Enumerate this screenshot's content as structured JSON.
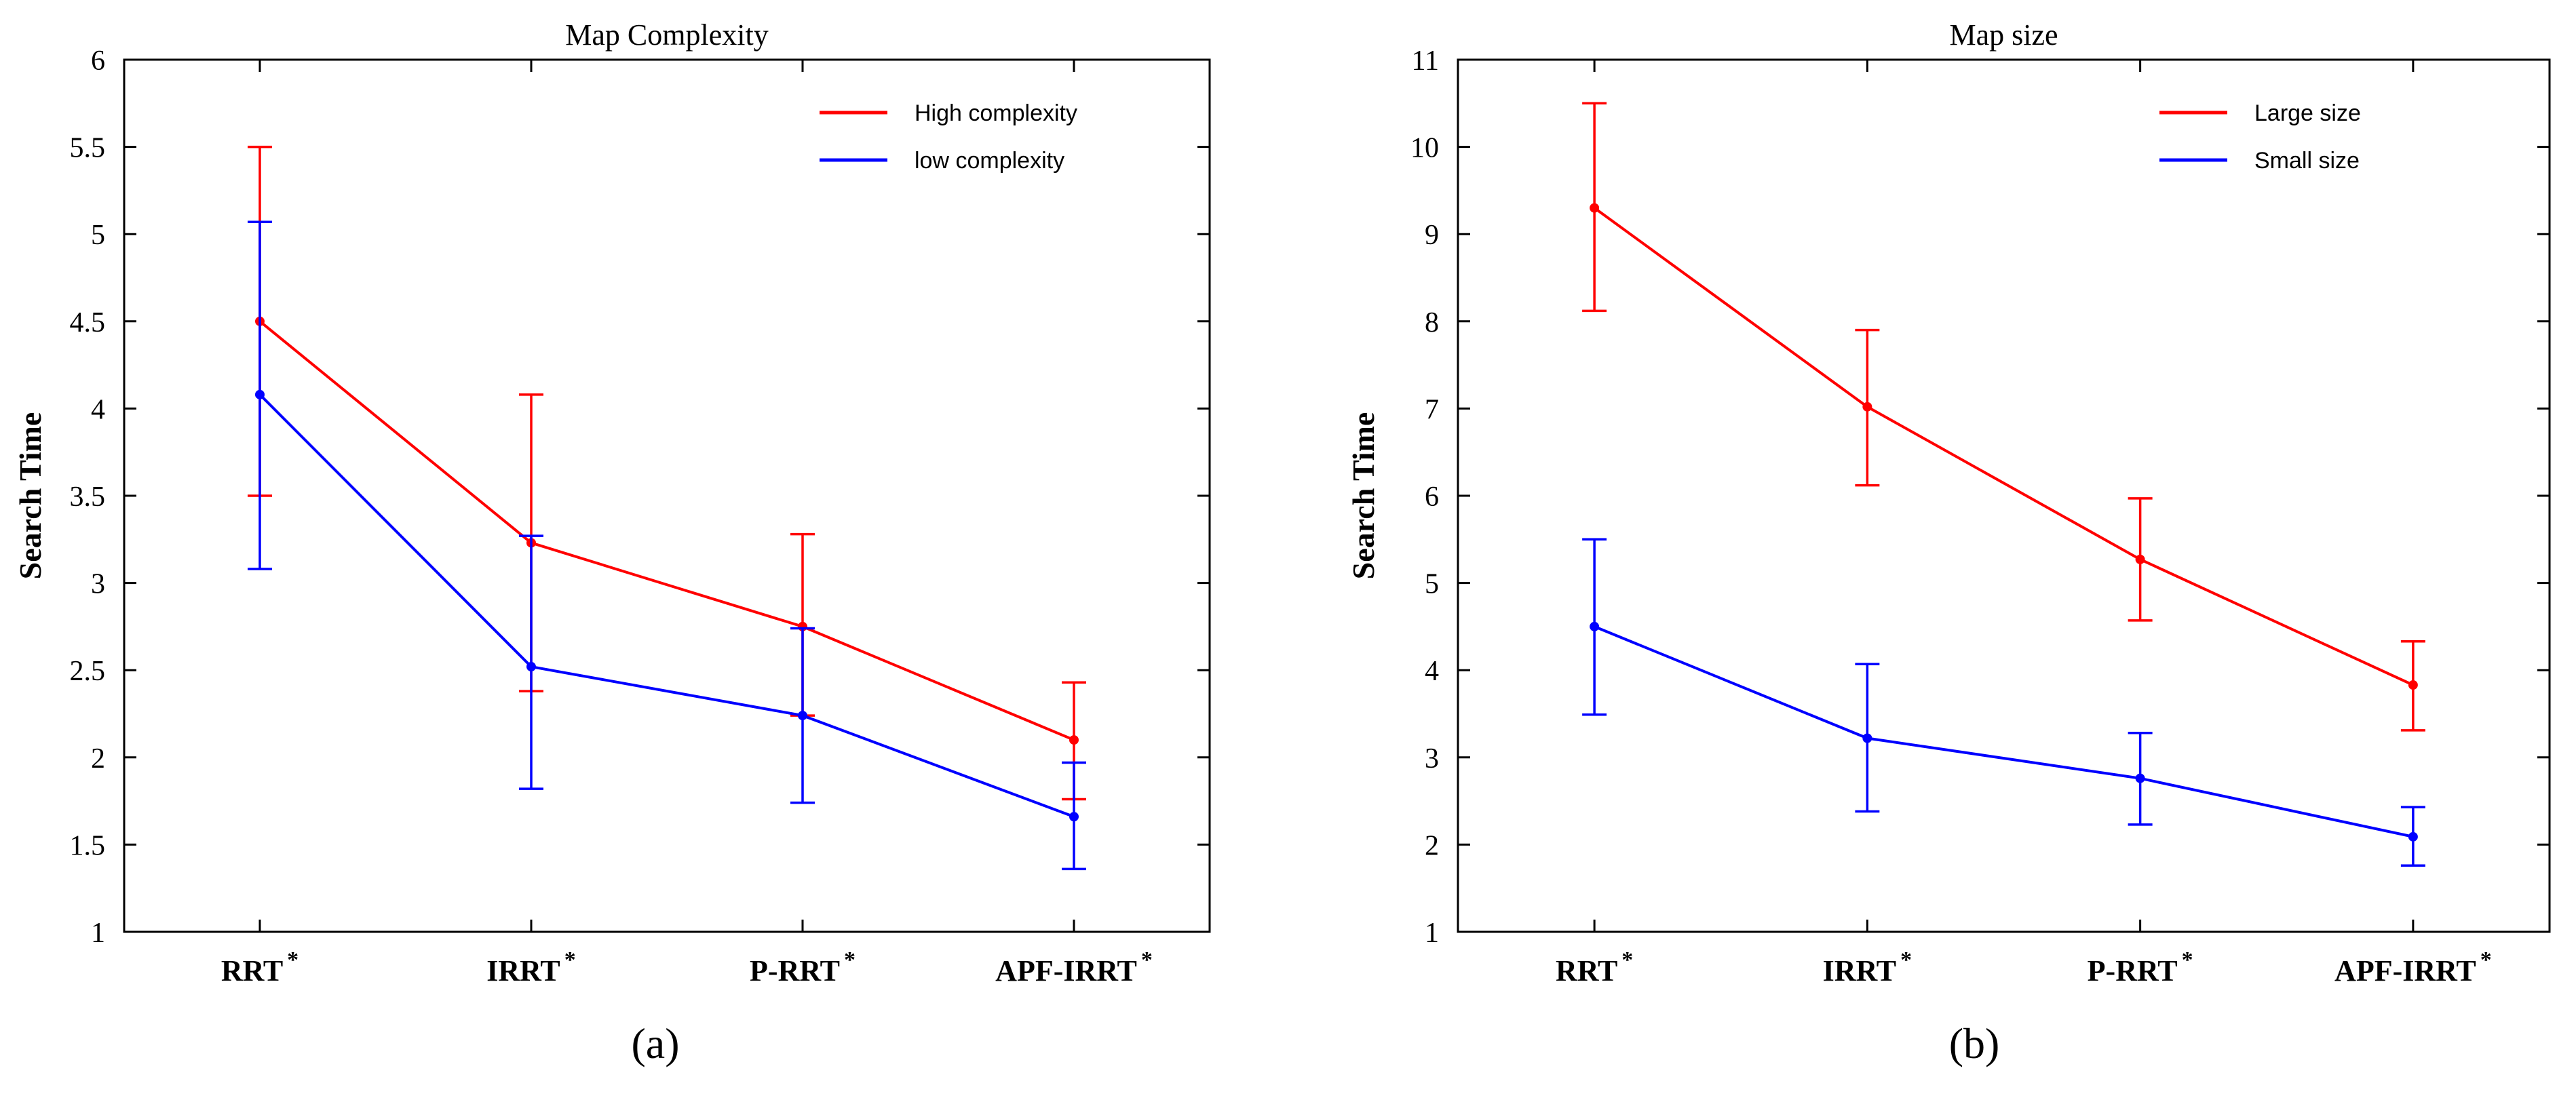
{
  "chart_data": [
    {
      "type": "line",
      "panel_label": "(a)",
      "title": "Map Complexity",
      "xlabel": "",
      "ylabel": "Search Time",
      "categories": [
        "RRT",
        "IRRT",
        "P-RRT",
        "APF-IRRT"
      ],
      "category_superscript": "*",
      "ylim": [
        1,
        6
      ],
      "yticks": [
        "1",
        "1.5",
        "2",
        "2.5",
        "3",
        "3.5",
        "4",
        "4.5",
        "5",
        "5.5",
        "6"
      ],
      "grid": false,
      "legend_position": "top-right",
      "series": [
        {
          "name": "High complexity",
          "color": "#ff0000",
          "values": [
            4.5,
            3.23,
            2.75,
            2.1
          ],
          "err_low": [
            3.5,
            2.38,
            2.24,
            1.76
          ],
          "err_high": [
            5.5,
            4.08,
            3.28,
            2.43
          ]
        },
        {
          "name": "low complexity",
          "color": "#0000ff",
          "values": [
            4.08,
            2.52,
            2.24,
            1.66
          ],
          "err_low": [
            3.08,
            1.82,
            1.74,
            1.36
          ],
          "err_high": [
            5.07,
            3.27,
            2.74,
            1.97
          ]
        }
      ]
    },
    {
      "type": "line",
      "panel_label": "(b)",
      "title": "Map size",
      "xlabel": "",
      "ylabel": "Search Time",
      "categories": [
        "RRT",
        "IRRT",
        "P-RRT",
        "APF-IRRT"
      ],
      "category_superscript": "*",
      "ylim": [
        1,
        11
      ],
      "yticks": [
        "1",
        "2",
        "3",
        "4",
        "5",
        "6",
        "7",
        "8",
        "9",
        "10",
        "11"
      ],
      "grid": false,
      "legend_position": "top-right",
      "series": [
        {
          "name": "Large size",
          "color": "#ff0000",
          "values": [
            9.3,
            7.02,
            5.27,
            3.83
          ],
          "err_low": [
            8.12,
            6.12,
            4.57,
            3.31
          ],
          "err_high": [
            10.5,
            7.9,
            5.97,
            4.33
          ]
        },
        {
          "name": "Small size",
          "color": "#0000ff",
          "values": [
            4.5,
            3.22,
            2.76,
            2.09
          ],
          "err_low": [
            3.49,
            2.38,
            2.23,
            1.76
          ],
          "err_high": [
            5.5,
            4.07,
            3.28,
            2.43
          ]
        }
      ]
    }
  ]
}
